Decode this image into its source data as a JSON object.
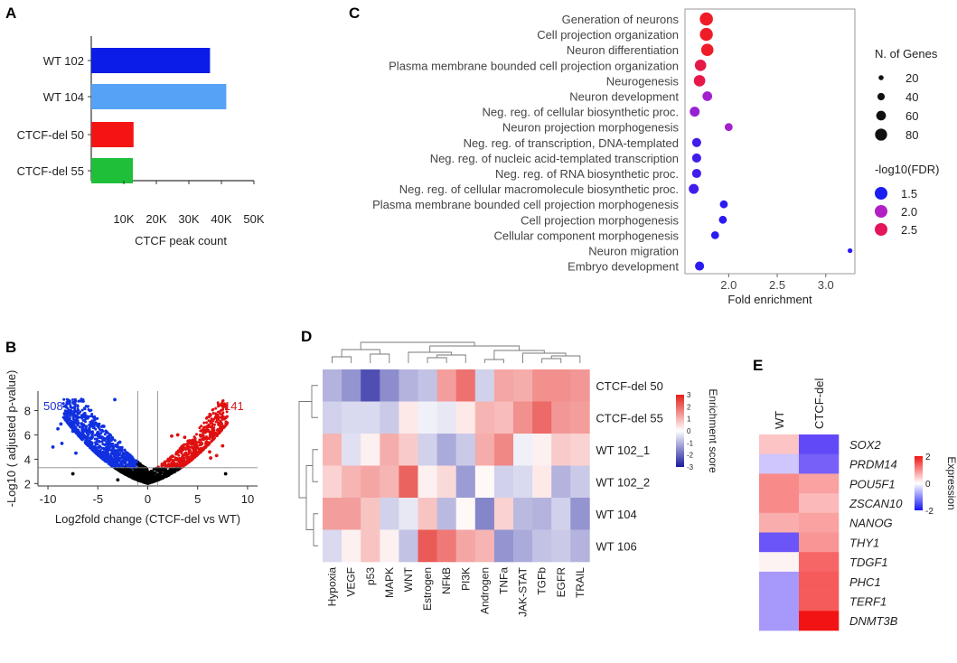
{
  "panels": {
    "a": "A",
    "b": "B",
    "c": "C",
    "d": "D",
    "e": "E"
  },
  "chart_data": [
    {
      "id": "A",
      "type": "bar",
      "orientation": "horizontal",
      "categories": [
        "WT 102",
        "WT 104",
        "CTCF-del 50",
        "CTCF-del 55"
      ],
      "values": [
        36500,
        41500,
        13000,
        12800
      ],
      "colors": [
        "#0b1be8",
        "#55a2f7",
        "#f51414",
        "#1fbf3a"
      ],
      "xlabel": "CTCF peak count",
      "xlim": [
        0,
        50000
      ],
      "xticks": [
        10000,
        20000,
        30000,
        40000,
        50000
      ],
      "xtick_labels": [
        "10K",
        "20K",
        "30K",
        "40K",
        "50K"
      ]
    },
    {
      "id": "C",
      "type": "scatter",
      "terms": [
        "Generation of neurons",
        "Cell projection organization",
        "Neuron differentiation",
        "Plasma membrane bounded cell projection organization",
        "Neurogenesis",
        "Neuron development",
        "Neg. reg. of cellular biosynthetic proc.",
        "Neuron projection morphogenesis",
        "Neg. reg. of transcription, DNA-templated",
        "Neg. reg. of nucleic acid-templated transcription",
        "Neg. reg. of RNA biosynthetic proc.",
        "Neg. reg. of cellular macromolecule biosynthetic proc.",
        "Plasma membrane bounded cell projection morphogenesis",
        "Cell projection morphogenesis",
        "Cellular component morphogenesis",
        "Neuron migration",
        "Embryo development"
      ],
      "fold_enrichment": [
        1.77,
        1.77,
        1.78,
        1.71,
        1.7,
        1.78,
        1.65,
        2.0,
        1.67,
        1.67,
        1.67,
        1.64,
        1.95,
        1.94,
        1.86,
        3.25,
        1.7
      ],
      "n_genes": [
        90,
        88,
        82,
        75,
        75,
        60,
        62,
        45,
        55,
        55,
        55,
        62,
        45,
        45,
        45,
        18,
        55
      ],
      "log10_fdr": [
        2.75,
        2.75,
        2.75,
        2.6,
        2.6,
        2.0,
        1.95,
        2.0,
        1.6,
        1.6,
        1.6,
        1.6,
        1.5,
        1.5,
        1.5,
        1.45,
        1.5
      ],
      "xlabel": "Fold enrichment",
      "xlim": [
        1.55,
        3.3
      ],
      "xticks": [
        2.0,
        2.5,
        3.0
      ],
      "xtick_labels": [
        "2.0",
        "2.5",
        "3.0"
      ],
      "size_legend": {
        "title": "N. of Genes",
        "values": [
          20,
          40,
          60,
          80
        ],
        "labels": [
          "20",
          "40",
          "60",
          "80"
        ]
      },
      "color_legend": {
        "title": "-log10(FDR)",
        "values": [
          1.5,
          2.0,
          2.5
        ],
        "labels": [
          "1.5",
          "2.0",
          "2.5"
        ],
        "colors": [
          "#1a1ef0",
          "#b21fc4",
          "#e5155a"
        ]
      }
    },
    {
      "id": "B",
      "type": "scatter",
      "subtype": "volcano",
      "xlabel": "Log2fold change (CTCF-del vs WT)",
      "ylabel": "-Log10 ( adjusted p-value)",
      "xlim": [
        -11,
        11
      ],
      "ylim": [
        1.8,
        9.6
      ],
      "xticks": [
        -10,
        -5,
        0,
        5,
        10
      ],
      "xtick_labels": [
        "-10",
        "-5",
        "0",
        "5",
        "10"
      ],
      "yticks": [
        2,
        4,
        6,
        8
      ],
      "ytick_labels": [
        "2",
        "4",
        "6",
        "8"
      ],
      "down_count": "508",
      "up_count": "141",
      "threshold_fc": [
        -1,
        1
      ],
      "threshold_p": 3.3,
      "colors": {
        "down": "#1030e0",
        "up": "#e01010",
        "ns": "#000000"
      },
      "highlight_points": [
        {
          "x": -3.3,
          "y": 8.9,
          "g": "down"
        },
        {
          "x": -8.2,
          "y": 7.3,
          "g": "down"
        },
        {
          "x": -8.7,
          "y": 6.9,
          "g": "down"
        },
        {
          "x": -9.0,
          "y": 6.5,
          "g": "down"
        },
        {
          "x": -9.5,
          "y": 5.0,
          "g": "down"
        },
        {
          "x": -8.6,
          "y": 5.3,
          "g": "down"
        },
        {
          "x": -7.5,
          "y": 6.3,
          "g": "down"
        },
        {
          "x": -6.8,
          "y": 6.1,
          "g": "down"
        },
        {
          "x": -5.0,
          "y": 6.2,
          "g": "down"
        },
        {
          "x": -4.4,
          "y": 6.7,
          "g": "down"
        },
        {
          "x": -4.0,
          "y": 5.8,
          "g": "down"
        },
        {
          "x": -6.0,
          "y": 5.5,
          "g": "down"
        },
        {
          "x": -2.8,
          "y": 5.4,
          "g": "down"
        },
        {
          "x": -7.2,
          "y": 4.5,
          "g": "down"
        },
        {
          "x": 3.0,
          "y": 6.0,
          "g": "up"
        },
        {
          "x": 2.4,
          "y": 5.9,
          "g": "up"
        },
        {
          "x": 3.7,
          "y": 5.8,
          "g": "up"
        },
        {
          "x": 4.3,
          "y": 5.5,
          "g": "up"
        },
        {
          "x": 7.5,
          "y": 5.1,
          "g": "up"
        },
        {
          "x": 6.2,
          "y": 4.6,
          "g": "up"
        },
        {
          "x": 6.9,
          "y": 4.3,
          "g": "up"
        },
        {
          "x": 5.2,
          "y": 4.7,
          "g": "up"
        },
        {
          "x": 6.3,
          "y": 4.1,
          "g": "up"
        },
        {
          "x": -7.5,
          "y": 2.8,
          "g": "ns"
        },
        {
          "x": 7.8,
          "y": 2.8,
          "g": "ns"
        },
        {
          "x": -3.0,
          "y": 2.3,
          "g": "ns"
        }
      ]
    },
    {
      "id": "D",
      "type": "heatmap",
      "rows": [
        "CTCF-del 50",
        "CTCF-del 55",
        "WT 102_1",
        "WT 102_2",
        "WT 104",
        "WT 106"
      ],
      "cols": [
        "Hypoxia",
        "VEGF",
        "p53",
        "MAPK",
        "WNT",
        "Estrogen",
        "NFkB",
        "PI3K",
        "Androgen",
        "TNFa",
        "JAK-STAT",
        "TGFb",
        "EGFR",
        "TRAIL"
      ],
      "values": [
        [
          -1.0,
          -1.4,
          -2.3,
          -1.5,
          -1.0,
          -0.8,
          1.3,
          1.9,
          -0.6,
          1.2,
          1.1,
          1.5,
          1.5,
          1.4
        ],
        [
          -0.6,
          -0.5,
          -0.5,
          -0.7,
          0.3,
          -0.2,
          -0.3,
          0.3,
          1.0,
          0.9,
          1.5,
          2.0,
          1.4,
          1.3
        ],
        [
          1.0,
          -0.4,
          0.2,
          1.1,
          0.7,
          -0.6,
          -1.1,
          -0.7,
          1.1,
          1.6,
          -0.2,
          0.2,
          0.7,
          0.6
        ],
        [
          0.6,
          1.0,
          1.2,
          1.0,
          2.1,
          0.2,
          0.5,
          -1.3,
          0.1,
          -0.6,
          -0.5,
          0.3,
          -1.0,
          -0.7
        ],
        [
          1.3,
          1.3,
          0.8,
          -0.6,
          -0.3,
          0.8,
          -0.9,
          0.1,
          -1.6,
          0.6,
          -0.9,
          -1.0,
          -0.6,
          -1.4
        ],
        [
          -0.5,
          0.2,
          0.8,
          0.2,
          -0.8,
          2.2,
          1.8,
          1.2,
          1.0,
          -1.4,
          -1.1,
          -0.8,
          -0.7,
          -1.0
        ]
      ],
      "colorbar": {
        "title": "Enrichment score",
        "range": [
          -3,
          3
        ],
        "ticks": [
          3,
          2,
          1,
          0,
          -1,
          -2,
          -3
        ],
        "tick_labels": [
          "3",
          "2",
          "1",
          "0",
          "-1",
          "-2",
          "-3"
        ]
      }
    },
    {
      "id": "E",
      "type": "heatmap",
      "cols": [
        "WT",
        "CTCF-del"
      ],
      "rows": [
        "SOX2",
        "PRDM14",
        "POU5F1",
        "ZSCAN10",
        "NANOG",
        "THY1",
        "TDGF1",
        "PHC1",
        "TERF1",
        "DNMT3B"
      ],
      "values": [
        [
          0.5,
          -1.6
        ],
        [
          -0.5,
          -1.4
        ],
        [
          1.0,
          0.8
        ],
        [
          1.0,
          0.6
        ],
        [
          0.7,
          0.8
        ],
        [
          -1.5,
          0.9
        ],
        [
          0.1,
          1.3
        ],
        [
          -0.9,
          1.4
        ],
        [
          -0.9,
          1.4
        ],
        [
          -0.9,
          2.0
        ]
      ],
      "colorbar": {
        "title": "Expression",
        "range": [
          -2,
          2
        ],
        "ticks": [
          2,
          0,
          -2
        ],
        "tick_labels": [
          "2",
          "0",
          "-2"
        ]
      }
    }
  ]
}
